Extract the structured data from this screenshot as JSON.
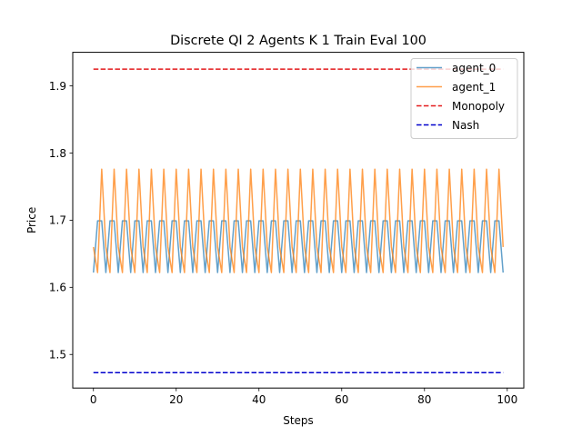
{
  "chart_data": {
    "type": "line",
    "title": "Discrete QI 2 Agents K 1 Train Eval 100",
    "xlabel": "Steps",
    "ylabel": "Price",
    "xlim": [
      -5,
      104
    ],
    "ylim": [
      1.45,
      1.95
    ],
    "xticks": [
      0,
      20,
      40,
      60,
      80,
      100
    ],
    "xtick_labels": [
      "0",
      "20",
      "40",
      "60",
      "80",
      "100"
    ],
    "yticks": [
      1.5,
      1.6,
      1.7,
      1.8,
      1.9
    ],
    "ytick_labels": [
      "1.5",
      "1.6",
      "1.7",
      "1.8",
      "1.9"
    ],
    "grid": false,
    "legend_position": "top-right",
    "series": [
      {
        "name": "agent_0",
        "color": "#1f77b4",
        "style": "solid",
        "opacity": 0.7,
        "x_start": 0,
        "x_step": 1,
        "values": [
          1.622,
          1.699,
          1.699,
          1.622,
          1.699,
          1.699,
          1.622,
          1.699,
          1.699,
          1.622,
          1.699,
          1.699,
          1.622,
          1.699,
          1.699,
          1.622,
          1.699,
          1.699,
          1.622,
          1.699,
          1.699,
          1.622,
          1.699,
          1.699,
          1.622,
          1.699,
          1.699,
          1.622,
          1.699,
          1.699,
          1.622,
          1.699,
          1.699,
          1.622,
          1.699,
          1.699,
          1.622,
          1.699,
          1.699,
          1.622,
          1.699,
          1.699,
          1.622,
          1.699,
          1.699,
          1.622,
          1.699,
          1.699,
          1.622,
          1.699,
          1.699,
          1.622,
          1.699,
          1.699,
          1.622,
          1.699,
          1.699,
          1.622,
          1.699,
          1.699,
          1.622,
          1.699,
          1.699,
          1.622,
          1.699,
          1.699,
          1.622,
          1.699,
          1.699,
          1.622,
          1.699,
          1.699,
          1.622,
          1.699,
          1.699,
          1.622,
          1.699,
          1.699,
          1.622,
          1.699,
          1.699,
          1.622,
          1.699,
          1.699,
          1.622,
          1.699,
          1.699,
          1.622,
          1.699,
          1.699,
          1.622,
          1.699,
          1.699,
          1.622,
          1.699,
          1.699,
          1.622,
          1.699,
          1.699,
          1.622
        ]
      },
      {
        "name": "agent_1",
        "color": "#ff7f0e",
        "style": "solid",
        "opacity": 0.75,
        "x_start": 0,
        "x_step": 1,
        "values": [
          1.66,
          1.622,
          1.776,
          1.66,
          1.622,
          1.776,
          1.66,
          1.622,
          1.776,
          1.66,
          1.622,
          1.776,
          1.66,
          1.622,
          1.776,
          1.66,
          1.622,
          1.776,
          1.66,
          1.622,
          1.776,
          1.66,
          1.622,
          1.776,
          1.66,
          1.622,
          1.776,
          1.66,
          1.622,
          1.776,
          1.66,
          1.622,
          1.776,
          1.66,
          1.622,
          1.776,
          1.66,
          1.622,
          1.776,
          1.66,
          1.622,
          1.776,
          1.66,
          1.622,
          1.776,
          1.66,
          1.622,
          1.776,
          1.66,
          1.622,
          1.776,
          1.66,
          1.622,
          1.776,
          1.66,
          1.622,
          1.776,
          1.66,
          1.622,
          1.776,
          1.66,
          1.622,
          1.776,
          1.66,
          1.622,
          1.776,
          1.66,
          1.622,
          1.776,
          1.66,
          1.622,
          1.776,
          1.66,
          1.622,
          1.776,
          1.66,
          1.622,
          1.776,
          1.66,
          1.622,
          1.776,
          1.66,
          1.622,
          1.776,
          1.66,
          1.622,
          1.776,
          1.66,
          1.622,
          1.776,
          1.66,
          1.622,
          1.776,
          1.66,
          1.622,
          1.776,
          1.66,
          1.622,
          1.776,
          1.66
        ]
      },
      {
        "name": "Monopoly",
        "color": "#e31a1c",
        "style": "dashed",
        "opacity": 1,
        "x_range": [
          0,
          99
        ],
        "value": 1.925
      },
      {
        "name": "Nash",
        "color": "#0000cc",
        "style": "dashed",
        "opacity": 1,
        "x_range": [
          0,
          99
        ],
        "value": 1.473
      }
    ]
  }
}
